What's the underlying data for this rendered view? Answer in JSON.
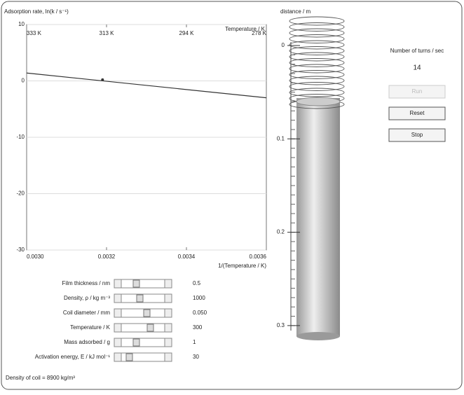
{
  "chart_data": {
    "type": "line",
    "y_label": "Adsorption rate, ln(k / s⁻¹)",
    "x_label": "1/(Temperature / K)",
    "top_axis_label": "Temperature / K",
    "x": [
      0.003,
      0.0036
    ],
    "series": [
      {
        "values": [
          1.4,
          -3.0
        ],
        "color": "#333333"
      }
    ],
    "marker": {
      "x": 0.00319,
      "y": 0.2
    },
    "xlim": [
      0.003,
      0.0036
    ],
    "xticks": [
      {
        "value": 0.003,
        "label": "0.0030"
      },
      {
        "value": 0.0032,
        "label": "0.0032"
      },
      {
        "value": 0.0034,
        "label": "0.0034"
      },
      {
        "value": 0.0036,
        "label": "0.0036"
      }
    ],
    "top_ticks": [
      {
        "value": 0.003,
        "label": "333 K"
      },
      {
        "value": 0.0032,
        "label": "313 K"
      },
      {
        "value": 0.0034,
        "label": "294 K"
      },
      {
        "value": 0.0036,
        "label": "278 K"
      }
    ],
    "ylim": [
      -30,
      10
    ],
    "yticks": [
      -30,
      -20,
      -10,
      0,
      10
    ],
    "grid": true
  },
  "scale": {
    "label": "distance / m",
    "ticks": [
      0,
      0.1,
      0.2,
      0.3
    ]
  },
  "counter": {
    "label": "Number of turns / sec",
    "value": 14
  },
  "buttons": [
    "Run",
    "Reset",
    "Stop"
  ],
  "controls": [
    {
      "label": "Film thickness / nm",
      "value": "0.5"
    },
    {
      "label": "Density, ρ / kg m⁻³",
      "value": "1000"
    },
    {
      "label": "Coil diameter / mm",
      "value": "0.050"
    },
    {
      "label": "Temperature / K",
      "value": "300"
    },
    {
      "label": "Mass adsorbed / g",
      "value": "1"
    },
    {
      "label": "Activation energy, E / kJ mol⁻¹",
      "value": "30"
    }
  ],
  "footer": "Density of coil = 8900 kg/m³"
}
